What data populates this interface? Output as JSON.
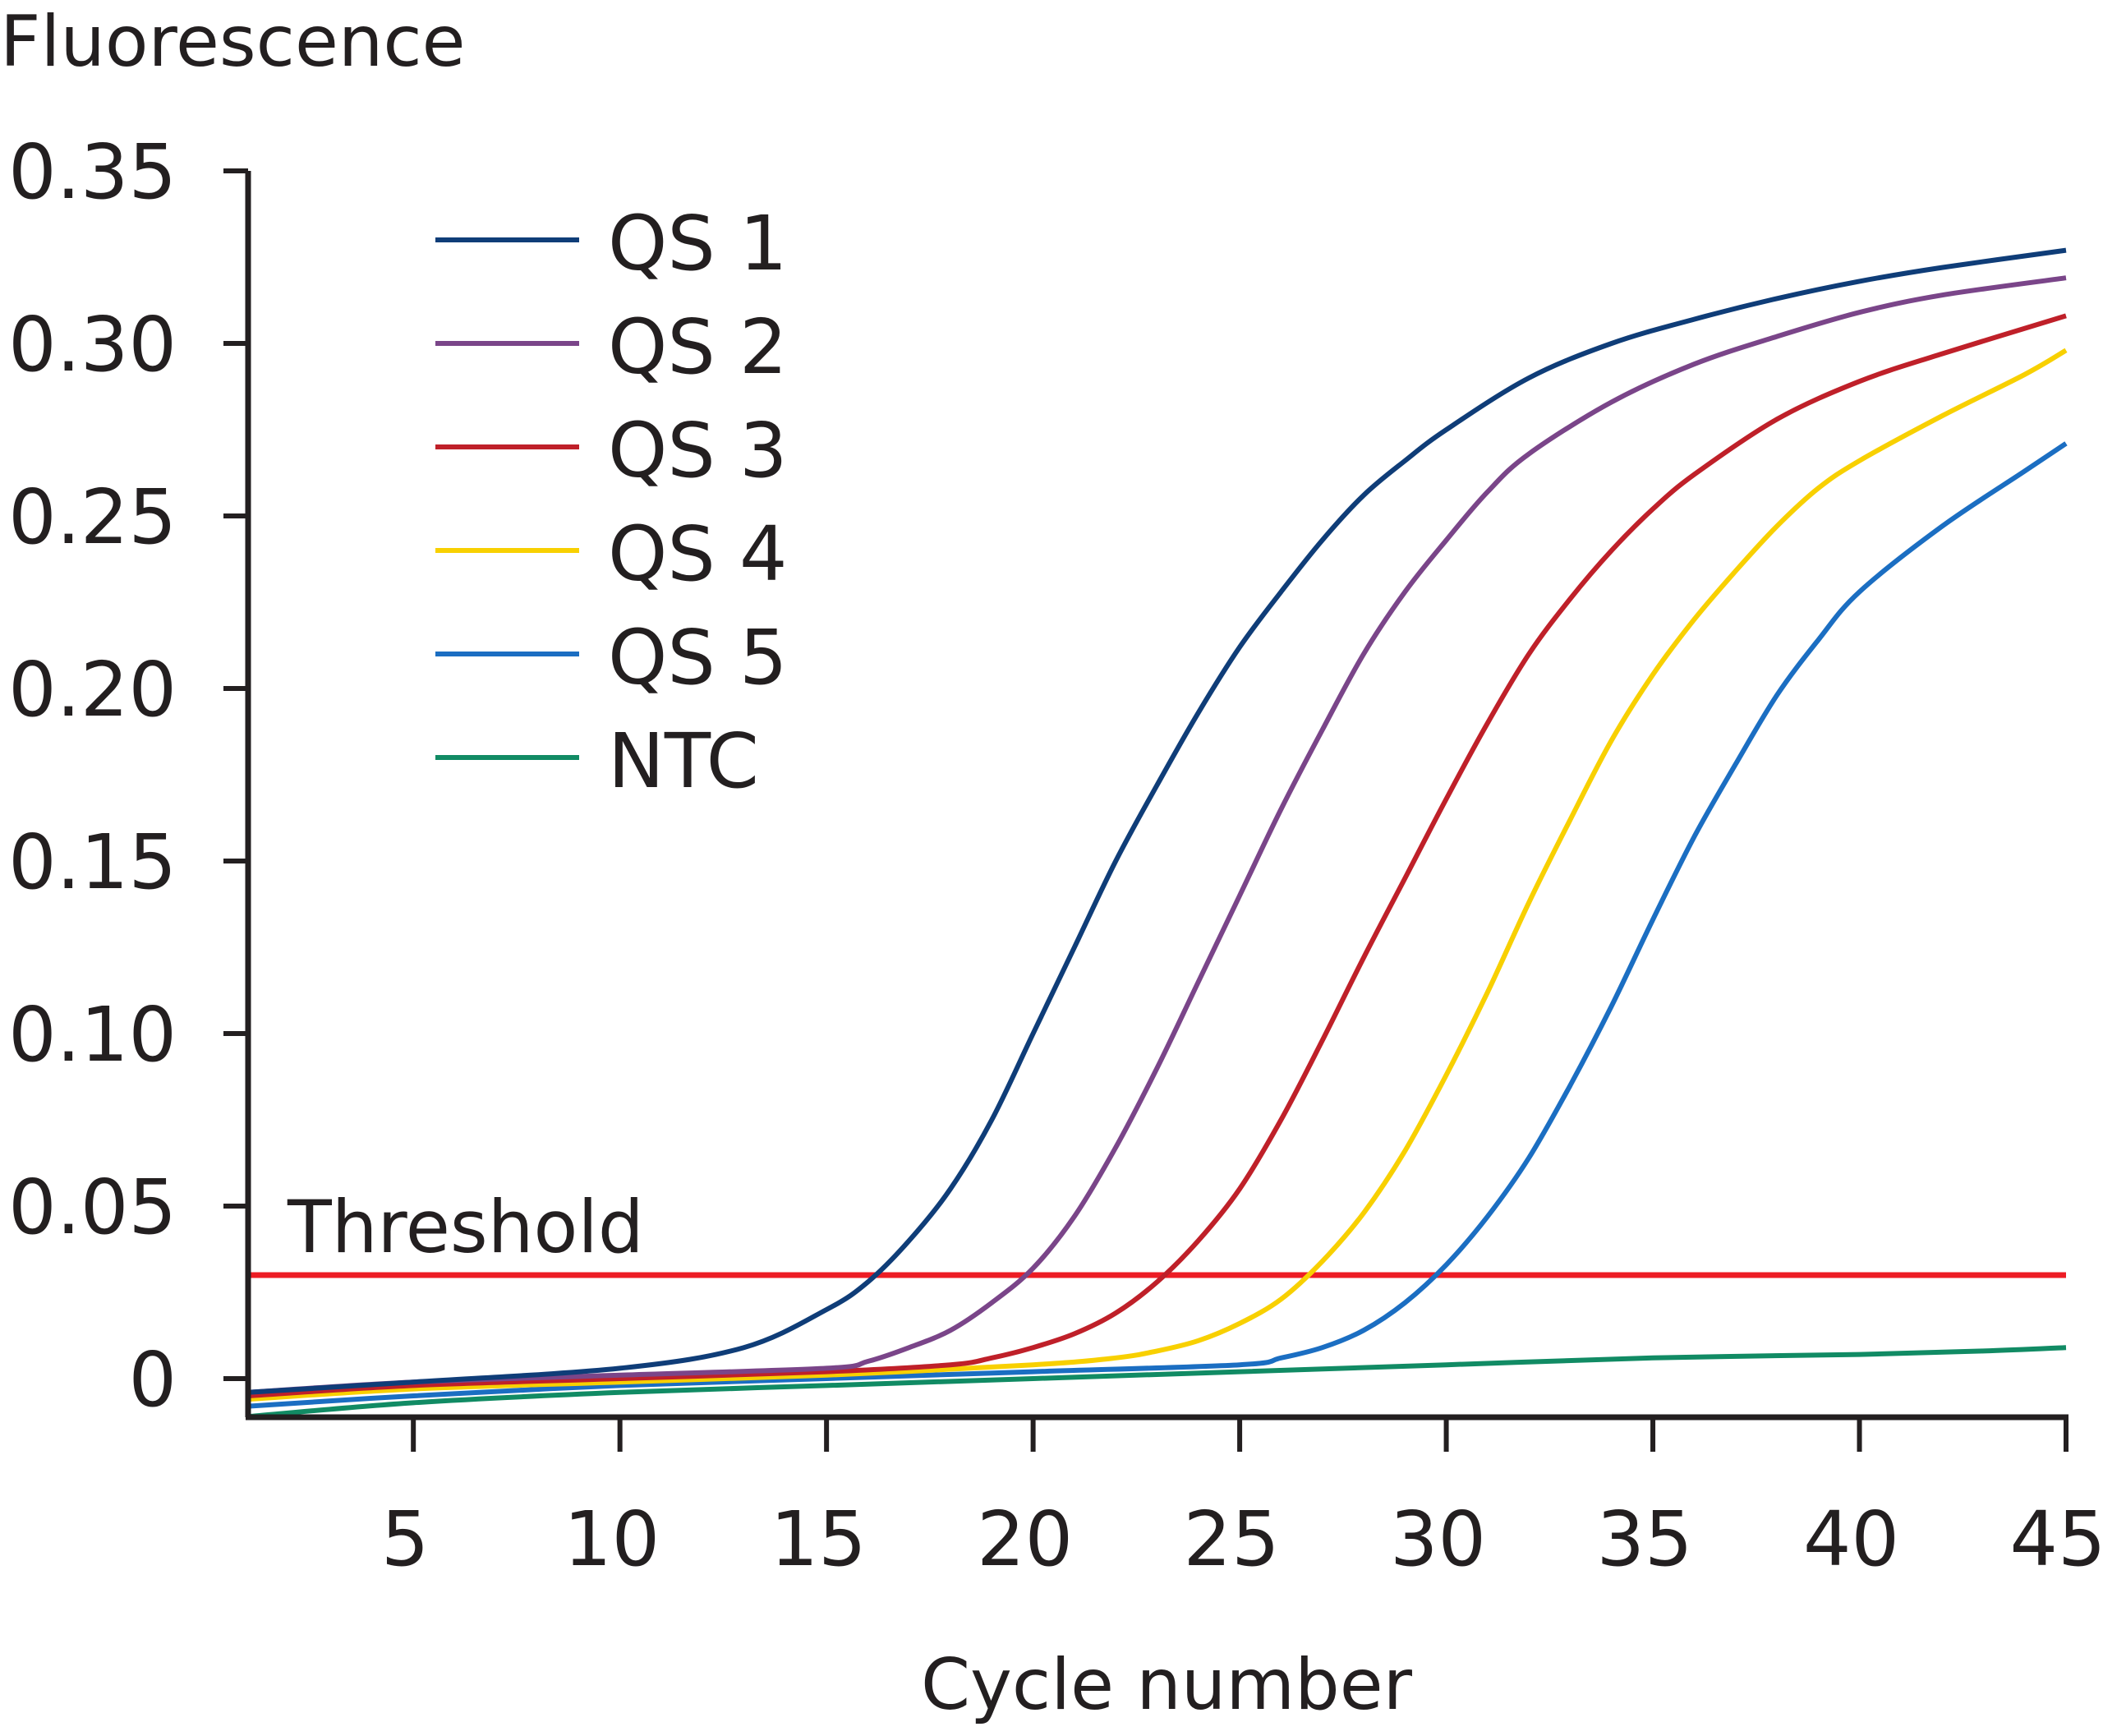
{
  "chart_data": {
    "type": "line",
    "title": "",
    "xlabel": "Cycle number",
    "ylabel": "Fluorescence",
    "xlim": [
      1,
      45
    ],
    "ylim": [
      -0.012,
      0.35
    ],
    "x_ticks": [
      5,
      10,
      15,
      20,
      25,
      30,
      35,
      40,
      45
    ],
    "x_tick_labels": [
      "5",
      "10",
      "15",
      "20",
      "25",
      "30",
      "35",
      "40",
      "45"
    ],
    "y_ticks": [
      0,
      0.05,
      0.1,
      0.15,
      0.2,
      0.25,
      0.3,
      0.35
    ],
    "y_tick_labels": [
      "0",
      "0.05",
      "0.10",
      "0.15",
      "0.20",
      "0.25",
      "0.30",
      "0.35"
    ],
    "grid": false,
    "legend_position": "top-left",
    "threshold": {
      "label": "Threshold",
      "value": 0.03,
      "color": "#ed1c24"
    },
    "axis_color": "#231f20",
    "series": [
      {
        "name": "QS 1",
        "color": "#0f3d78",
        "x": [
          1,
          5,
          10,
          13,
          15,
          16,
          17,
          18,
          19,
          20,
          21,
          22,
          23,
          24,
          25,
          26,
          27,
          28,
          29,
          30,
          32,
          34,
          36,
          38,
          40,
          42,
          45
        ],
        "y": [
          -0.004,
          -0.001,
          0.003,
          0.009,
          0.02,
          0.028,
          0.04,
          0.055,
          0.075,
          0.1,
          0.125,
          0.15,
          0.172,
          0.193,
          0.212,
          0.228,
          0.243,
          0.256,
          0.266,
          0.275,
          0.29,
          0.3,
          0.307,
          0.313,
          0.318,
          0.322,
          0.327
        ]
      },
      {
        "name": "QS 2",
        "color": "#7a4589",
        "x": [
          1,
          5,
          10,
          15,
          16,
          17,
          18,
          19,
          20,
          21,
          22,
          23,
          24,
          25,
          26,
          27,
          28,
          29,
          30,
          31,
          32,
          34,
          36,
          38,
          40,
          42,
          45
        ],
        "y": [
          -0.004,
          -0.001,
          0.001,
          0.003,
          0.005,
          0.009,
          0.014,
          0.022,
          0.032,
          0.047,
          0.067,
          0.09,
          0.115,
          0.14,
          0.165,
          0.188,
          0.21,
          0.228,
          0.243,
          0.257,
          0.268,
          0.283,
          0.294,
          0.302,
          0.309,
          0.314,
          0.319
        ]
      },
      {
        "name": "QS 3",
        "color": "#bf2029",
        "x": [
          1,
          5,
          10,
          15,
          18,
          19,
          20,
          21,
          22,
          23,
          24,
          25,
          26,
          27,
          28,
          29,
          30,
          31,
          32,
          33,
          34,
          35,
          36,
          38,
          40,
          42,
          45
        ],
        "y": [
          -0.005,
          -0.002,
          0.0,
          0.002,
          0.004,
          0.006,
          0.009,
          0.013,
          0.019,
          0.028,
          0.04,
          0.055,
          0.075,
          0.098,
          0.122,
          0.145,
          0.168,
          0.19,
          0.21,
          0.226,
          0.24,
          0.252,
          0.262,
          0.278,
          0.289,
          0.297,
          0.308
        ]
      },
      {
        "name": "QS 4",
        "color": "#f8d000",
        "x": [
          1,
          5,
          10,
          15,
          20,
          22,
          23,
          24,
          25,
          26,
          27,
          28,
          29,
          30,
          31,
          32,
          33,
          34,
          35,
          36,
          37,
          38,
          39,
          40,
          42,
          44,
          45
        ],
        "y": [
          -0.006,
          -0.003,
          -0.001,
          0.001,
          0.004,
          0.006,
          0.008,
          0.011,
          0.016,
          0.023,
          0.034,
          0.048,
          0.066,
          0.088,
          0.112,
          0.138,
          0.162,
          0.185,
          0.204,
          0.22,
          0.234,
          0.247,
          0.258,
          0.266,
          0.279,
          0.291,
          0.298
        ]
      },
      {
        "name": "QS 5",
        "color": "#1b6ec2",
        "x": [
          1,
          5,
          10,
          15,
          20,
          25,
          26,
          27,
          28,
          29,
          30,
          31,
          32,
          33,
          34,
          35,
          36,
          37,
          38,
          39,
          40,
          42,
          44,
          45
        ],
        "y": [
          -0.008,
          -0.005,
          -0.002,
          0.0,
          0.002,
          0.004,
          0.006,
          0.009,
          0.014,
          0.022,
          0.033,
          0.047,
          0.064,
          0.085,
          0.108,
          0.133,
          0.157,
          0.178,
          0.198,
          0.214,
          0.228,
          0.247,
          0.263,
          0.271
        ]
      },
      {
        "name": "NTC",
        "color": "#118b64",
        "x": [
          1,
          5,
          10,
          15,
          20,
          25,
          30,
          35,
          40,
          43,
          45
        ],
        "y": [
          -0.011,
          -0.007,
          -0.004,
          -0.002,
          0.0,
          0.002,
          0.004,
          0.006,
          0.007,
          0.008,
          0.009
        ]
      }
    ]
  }
}
